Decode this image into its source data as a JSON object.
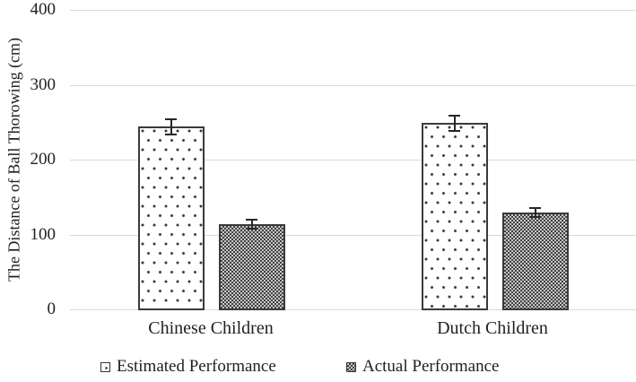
{
  "chart_data": {
    "type": "bar",
    "title": "",
    "xlabel": "",
    "ylabel": "The Distance of Ball Thorowing (cm)",
    "ylim": [
      0,
      400
    ],
    "yticks": [
      0,
      100,
      200,
      300,
      400
    ],
    "grid": "horizontal",
    "legend_position": "bottom",
    "categories": [
      "Chinese Children",
      "Dutch Children"
    ],
    "series": [
      {
        "name": "Estimated Performance",
        "fill_pattern": "dotted-white",
        "values": [
          245,
          250
        ],
        "error_bars": [
          10,
          10
        ]
      },
      {
        "name": "Actual Performance",
        "fill_pattern": "checkered-gray",
        "values": [
          115,
          130
        ],
        "error_bars": [
          6,
          6
        ]
      }
    ]
  },
  "colors": {
    "ink": "#262626",
    "gridline": "#d9d9d9",
    "pattern_dark": "#3a3a3a",
    "pattern_light": "#c6c6c6",
    "background": "#ffffff"
  }
}
